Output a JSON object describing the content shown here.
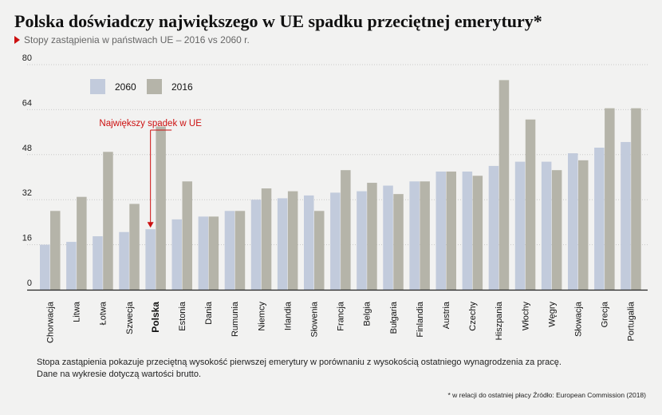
{
  "header": {
    "title": "Polska doświadczy największego w UE spadku przeciętnej emerytury*",
    "subtitle": "Stopy zastąpienia w państwach UE – 2016 vs 2060 r."
  },
  "chart_data": {
    "type": "bar",
    "categories": [
      "Chorwacja",
      "Litwa",
      "Łotwa",
      "Szwecja",
      "Polska",
      "Estonia",
      "Dania",
      "Rumunia",
      "Niemcy",
      "Irlandia",
      "Słowenia",
      "Francja",
      "Belgia",
      "Bułgaria",
      "Finlandia",
      "Austria",
      "Czechy",
      "Hiszpania",
      "Włochy",
      "Węgry",
      "Słowacja",
      "Grecja",
      "Portugalia"
    ],
    "highlight_category": "Polska",
    "series": [
      {
        "name": "2060",
        "color": "#c2cbdc",
        "values": [
          16,
          17,
          19,
          20.5,
          21.5,
          25,
          26,
          28,
          32,
          32.5,
          33.5,
          34.5,
          35,
          37,
          38.5,
          42,
          42,
          44,
          45.5,
          45.5,
          48.5,
          50.5,
          52.5
        ]
      },
      {
        "name": "2016",
        "color": "#b5b4a9",
        "values": [
          28,
          33,
          49,
          30.5,
          58,
          38.5,
          26,
          28,
          36,
          35,
          28,
          42.5,
          38,
          34,
          38.5,
          42,
          40.5,
          74.5,
          60.5,
          42.5,
          46,
          64.5,
          64.5
        ]
      }
    ],
    "ylim": [
      0,
      80
    ],
    "yticks": [
      0,
      16,
      32,
      48,
      64,
      80
    ],
    "grid": true,
    "legend_position": "top-left",
    "annotation": {
      "text": "Największy spadek w UE",
      "category": "Polska",
      "color": "#cc1010"
    }
  },
  "notes": {
    "line1": "Stopa zastąpienia pokazuje przeciętną wysokość pierwszej emerytury w porównaniu z wysokością ostatniego wynagrodzenia za pracę.",
    "line2": "Dane na wykresie dotyczą wartości brutto.",
    "source": "* w relacji do ostatniej płacy Źródło: European Commission (2018)"
  }
}
